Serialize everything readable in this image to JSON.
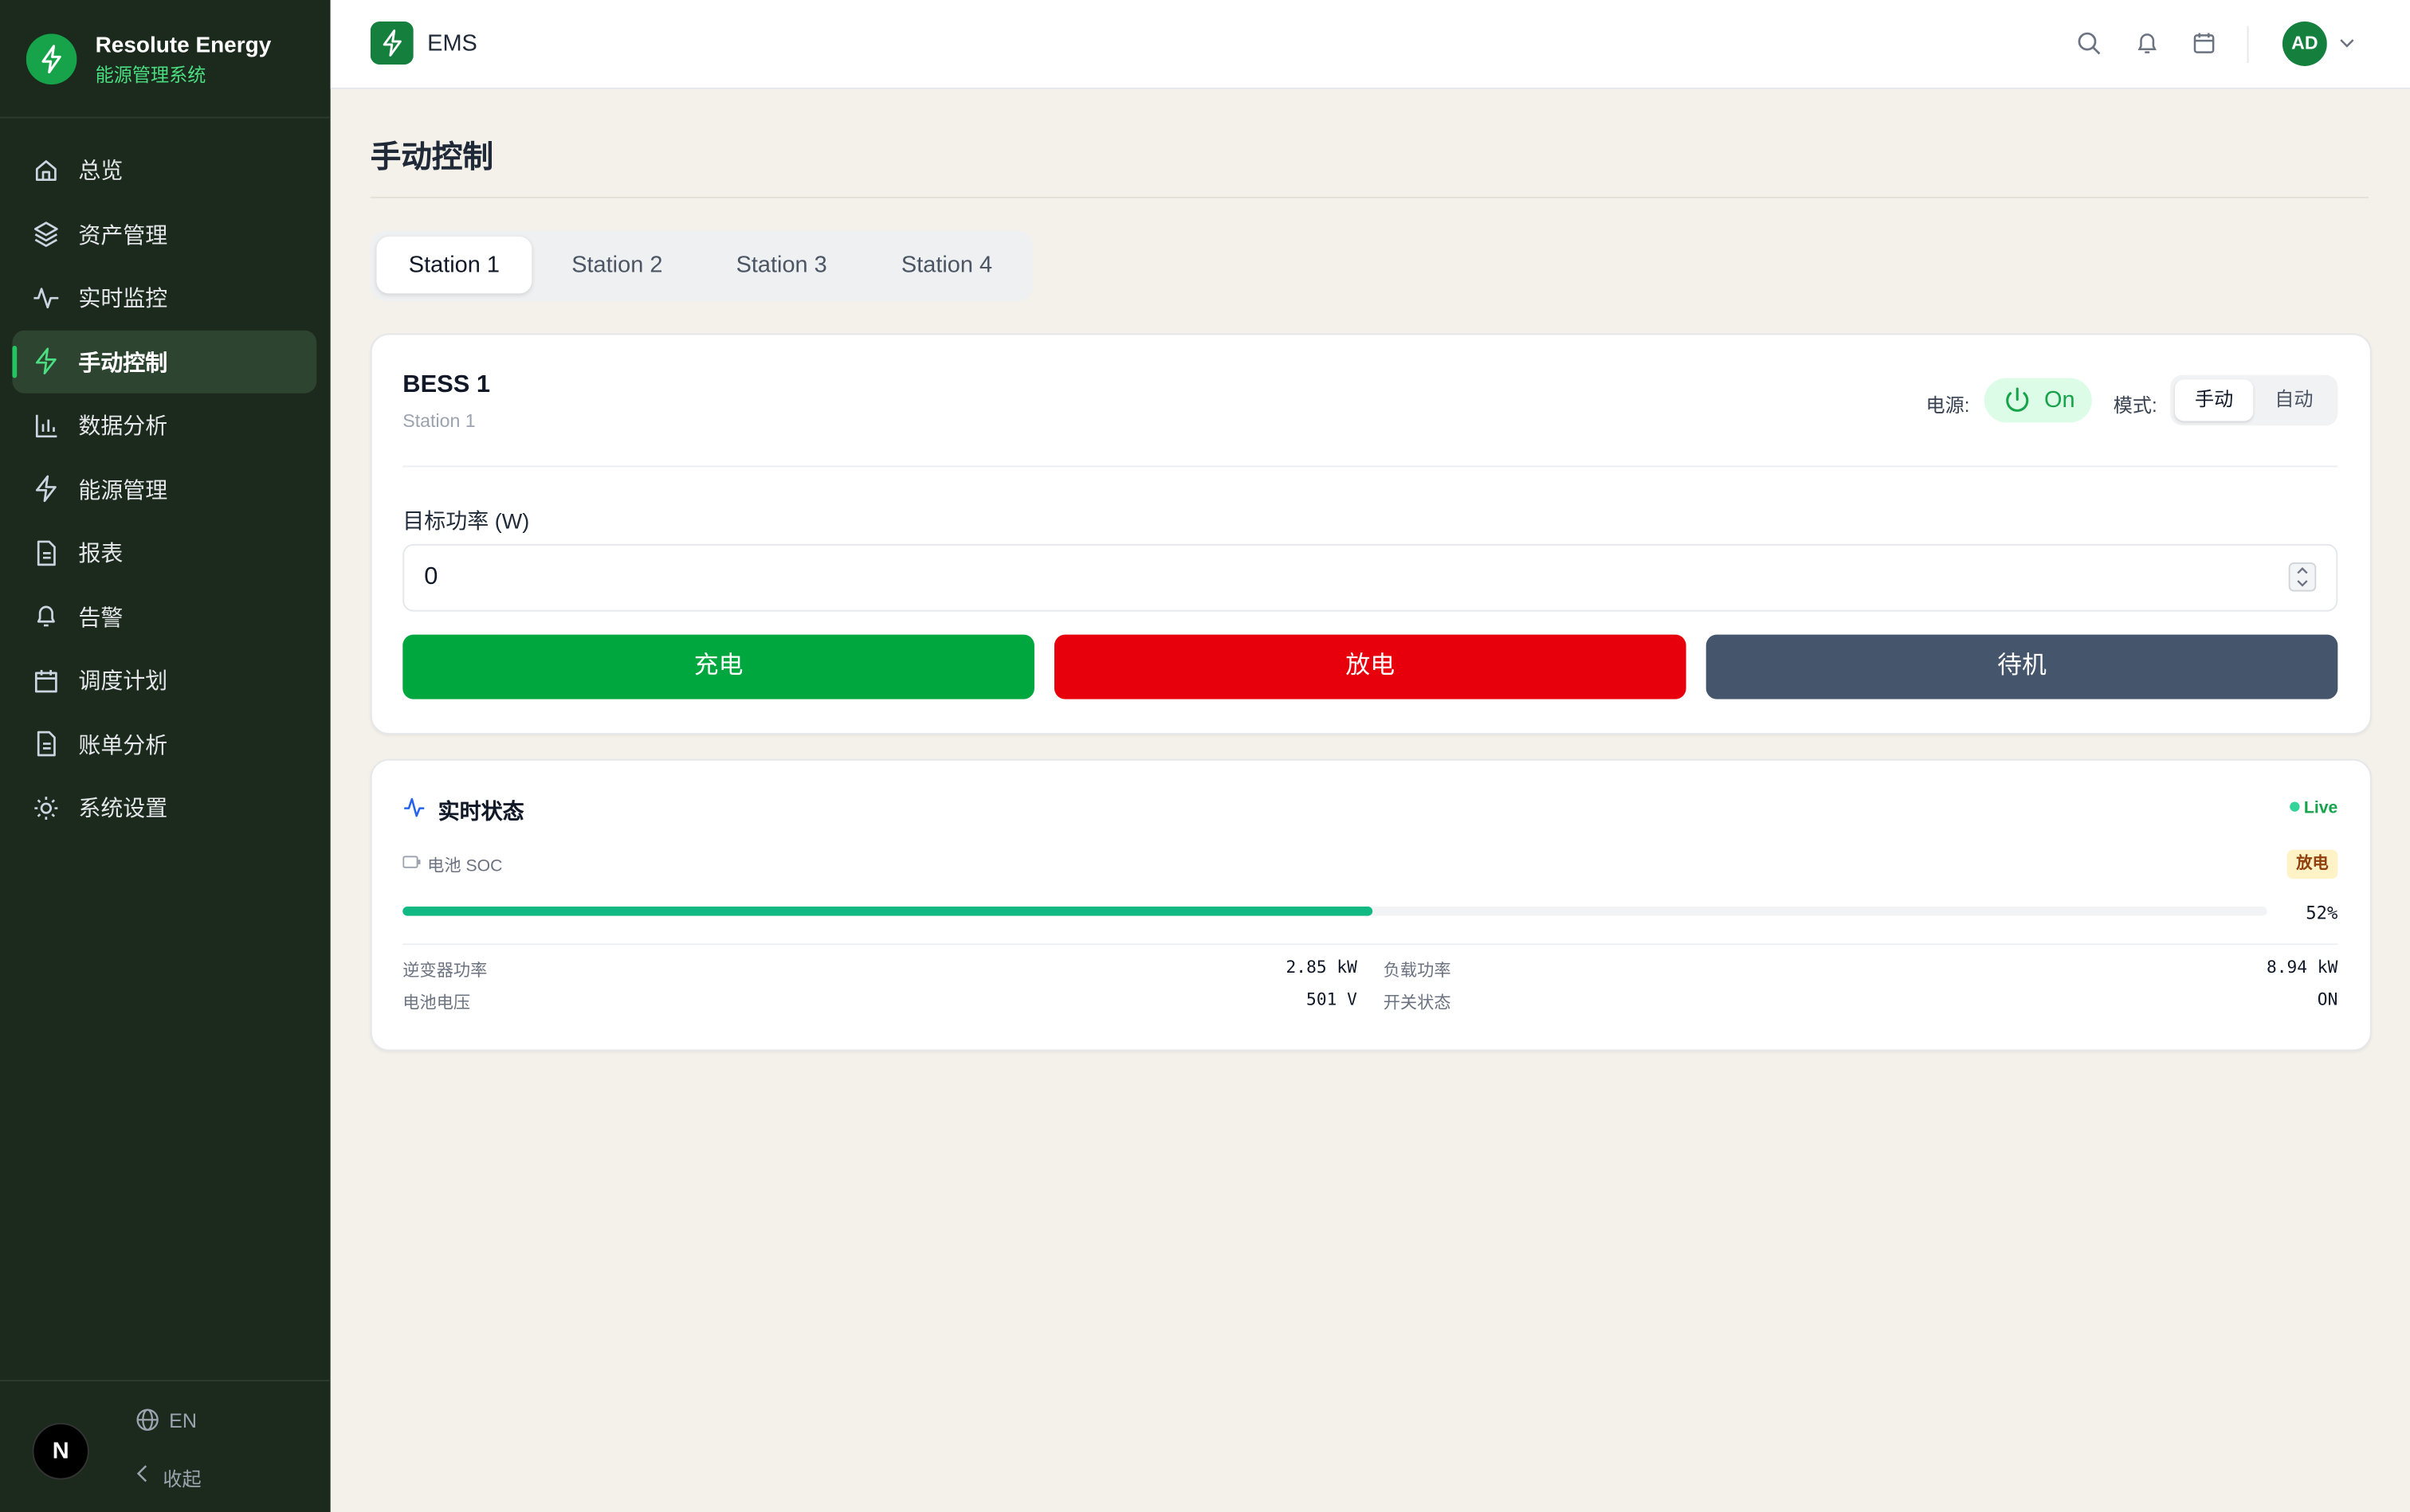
{
  "brand": {
    "name": "Resolute Energy",
    "subtitle": "能源管理系统"
  },
  "nav": {
    "items": [
      "总览",
      "资产管理",
      "实时监控",
      "手动控制",
      "数据分析",
      "能源管理",
      "报表",
      "告警",
      "调度计划",
      "账单分析",
      "系统设置"
    ],
    "active": 3
  },
  "sidebar_footer": {
    "language": "EN",
    "collapse": "收起",
    "avatar": "N"
  },
  "header": {
    "app": "EMS",
    "user": "AD"
  },
  "page": {
    "title": "手动控制"
  },
  "tabs": {
    "items": [
      "Station 1",
      "Station 2",
      "Station 3",
      "Station 4"
    ],
    "active": 0
  },
  "device": {
    "name": "BESS 1",
    "station": "Station 1",
    "power_label": "电源:",
    "power_state": "On",
    "mode_label": "模式:",
    "modes": [
      "手动",
      "自动"
    ],
    "active_mode": 0,
    "target_label": "目标功率 (W)",
    "target_value": "0",
    "buttons": [
      "充电",
      "放电",
      "待机"
    ]
  },
  "status": {
    "title": "实时状态",
    "live": "Live",
    "soc_label": "电池 SOC",
    "state_badge": "放电",
    "soc": {
      "value": 52,
      "label": "52%"
    },
    "soc_lim": [
      0,
      100
    ],
    "metrics": [
      {
        "label": "逆变器功率",
        "value": "2.85 kW"
      },
      {
        "label": "负载功率",
        "value": "8.94 kW"
      },
      {
        "label": "电池电压",
        "value": "501 V"
      },
      {
        "label": "开关状态",
        "value": "ON"
      }
    ]
  }
}
